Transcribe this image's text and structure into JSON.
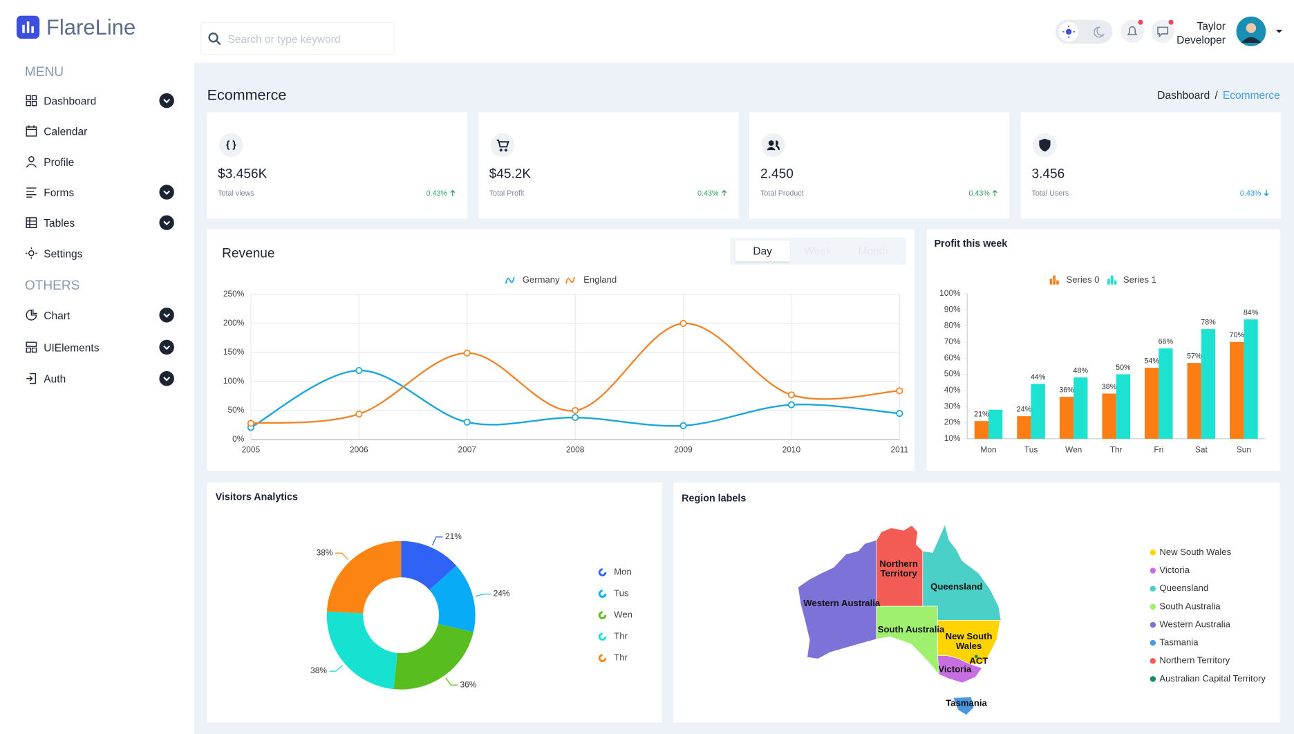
{
  "header": {
    "logo": "FlareLine",
    "search_placeholder": "Search or type keyword",
    "user_name": "Taylor",
    "user_role": "Developer"
  },
  "sidebar": {
    "sections": [
      {
        "title": "MENU",
        "items": [
          {
            "label": "Dashboard",
            "has_submenu": true
          },
          {
            "label": "Calendar",
            "has_submenu": false
          },
          {
            "label": "Profile",
            "has_submenu": false
          },
          {
            "label": "Forms",
            "has_submenu": true
          },
          {
            "label": "Tables",
            "has_submenu": true
          },
          {
            "label": "Settings",
            "has_submenu": false
          }
        ]
      },
      {
        "title": "OTHERS",
        "items": [
          {
            "label": "Chart",
            "has_submenu": true
          },
          {
            "label": "UIElements",
            "has_submenu": true
          },
          {
            "label": "Auth",
            "has_submenu": true
          }
        ]
      }
    ]
  },
  "page": {
    "title": "Ecommerce",
    "breadcrumb": [
      "Dashboard",
      "/",
      "Ecommerce"
    ]
  },
  "stats": [
    {
      "value": "$3.456K",
      "label": "Total views",
      "change": "0.43%",
      "trend": "up"
    },
    {
      "value": "$45.2K",
      "label": "Total Profit",
      "change": "0.43%",
      "trend": "up"
    },
    {
      "value": "2.450",
      "label": "Total Product",
      "change": "0.43%",
      "trend": "up"
    },
    {
      "value": "3.456",
      "label": "Total Users",
      "change": "0.43%",
      "trend": "down"
    }
  ],
  "revenue_tabs": {
    "options": [
      "Day",
      "Week",
      "Month"
    ],
    "selected": 0
  },
  "chart_data": [
    {
      "type": "line",
      "title": "Revenue",
      "x": [
        2005,
        2006,
        2007,
        2008,
        2009,
        2010,
        2011
      ],
      "xlim": [
        2005,
        2011
      ],
      "xticks": [
        2005,
        2006,
        2007,
        2008,
        2009,
        2010,
        2011
      ],
      "ylim": [
        0,
        250
      ],
      "yticks": [
        {
          "value": 0,
          "label": "0%"
        },
        {
          "value": 50,
          "label": "50%"
        },
        {
          "value": 100,
          "label": "100%"
        },
        {
          "value": 150,
          "label": "150%"
        },
        {
          "value": 200,
          "label": "200%"
        },
        {
          "value": 250,
          "label": "250%"
        }
      ],
      "grid": true,
      "series": [
        {
          "name": "Germany",
          "color": "#1ba6d9",
          "values": [
            21,
            119,
            30,
            38,
            24,
            60,
            45
          ]
        },
        {
          "name": "England",
          "color": "#f0862a",
          "values": [
            28,
            44,
            149,
            50,
            200,
            77,
            84
          ]
        }
      ]
    },
    {
      "type": "bar",
      "title": "Profit this week",
      "categories": [
        "Mon",
        "Tus",
        "Wen",
        "Thr",
        "Fri",
        "Sat",
        "Sun"
      ],
      "ylim": [
        10,
        100
      ],
      "yticks": [
        {
          "value": 10,
          "label": "10%"
        },
        {
          "value": 20,
          "label": "20%"
        },
        {
          "value": 30,
          "label": "30%"
        },
        {
          "value": 40,
          "label": "40%"
        },
        {
          "value": 50,
          "label": "50%"
        },
        {
          "value": 60,
          "label": "60%"
        },
        {
          "value": 70,
          "label": "70%"
        },
        {
          "value": 80,
          "label": "80%"
        },
        {
          "value": 90,
          "label": "90%"
        },
        {
          "value": 100,
          "label": "100%"
        }
      ],
      "series": [
        {
          "name": "Series 0",
          "color": "#fb7d13",
          "values": [
            21,
            24,
            36,
            38,
            54,
            57,
            70
          ],
          "value_labels": [
            "21%",
            "24%",
            "36%",
            "38%",
            "54%",
            "57%",
            "70%"
          ]
        },
        {
          "name": "Series 1",
          "color": "#1de1d1",
          "values": [
            28,
            44,
            48,
            50,
            66,
            78,
            84
          ],
          "value_labels": [
            null,
            "44%",
            "48%",
            "50%",
            "66%",
            "78%",
            "84%"
          ]
        }
      ]
    },
    {
      "type": "donut",
      "title": "Visitors Analytics",
      "categories": [
        "Mon",
        "Tus",
        "Wen",
        "Thr",
        "Thr"
      ],
      "values": [
        21,
        24,
        36,
        38,
        38
      ],
      "value_labels": [
        "21%",
        "24%",
        "36%",
        "38%",
        "38%"
      ],
      "colors": [
        "#2f62f5",
        "#08acf6",
        "#58bd1f",
        "#17e2d2",
        "#fb8412"
      ]
    }
  ],
  "region_map": {
    "title": "Region labels",
    "regions": [
      {
        "name": "New South Wales",
        "map_label": "New South Wales",
        "color": "#ffd400"
      },
      {
        "name": "Victoria",
        "map_label": "Victoria",
        "color": "#c76ee0"
      },
      {
        "name": "Queensland",
        "map_label": "Queensland",
        "color": "#4bd0c8"
      },
      {
        "name": "South Australia",
        "map_label": "South Australia",
        "color": "#9ef06e"
      },
      {
        "name": "Western Australia",
        "map_label": "Western Australia",
        "color": "#7d72d8"
      },
      {
        "name": "Tasmania",
        "map_label": "Tasmania",
        "color": "#4b97e0"
      },
      {
        "name": "Northern Territory",
        "map_label": "Northern Territory",
        "color": "#f25c54"
      },
      {
        "name": "Australian Capital Territory",
        "map_label": "ACT",
        "color": "#16896c"
      }
    ]
  }
}
